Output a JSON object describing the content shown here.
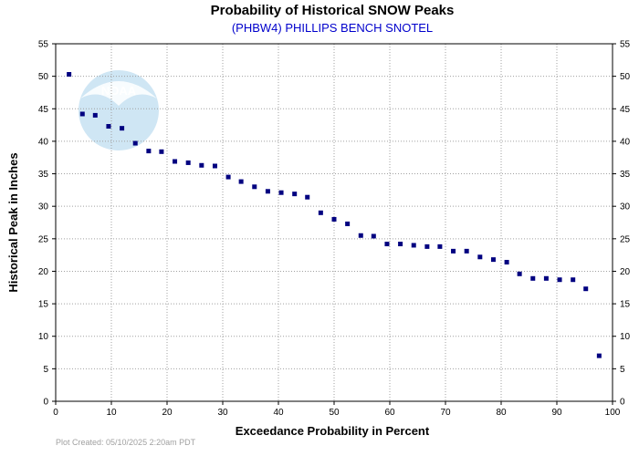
{
  "chart_data": {
    "type": "scatter",
    "title": "Probability of Historical SNOW Peaks",
    "subtitle": "(PHBW4) PHILLIPS BENCH SNOTEL",
    "xlabel": "Exceedance Probability in Percent",
    "ylabel": "Historical Peak in Inches",
    "xlim": [
      0,
      100
    ],
    "ylim": [
      0,
      55
    ],
    "x_ticks": [
      0,
      10,
      20,
      30,
      40,
      50,
      60,
      70,
      80,
      90,
      100
    ],
    "y_ticks": [
      0,
      5,
      10,
      15,
      20,
      25,
      30,
      35,
      40,
      45,
      50,
      55
    ],
    "grid": true,
    "series": [
      {
        "x": [
          2.4,
          4.8,
          7.1,
          9.5,
          11.9,
          14.3,
          16.7,
          19.0,
          21.4,
          23.8,
          26.2,
          28.6,
          31.0,
          33.3,
          35.7,
          38.1,
          40.5,
          42.9,
          45.2,
          47.6,
          50.0,
          52.4,
          54.8,
          57.1,
          59.5,
          61.9,
          64.3,
          66.7,
          69.0,
          71.4,
          73.8,
          76.2,
          78.6,
          81.0,
          83.3,
          85.7,
          88.1,
          90.5,
          92.9,
          95.2,
          97.6
        ],
        "y": [
          50.3,
          44.2,
          44.0,
          42.3,
          42.0,
          39.7,
          38.5,
          38.4,
          36.9,
          36.7,
          36.3,
          36.2,
          34.5,
          33.8,
          33.0,
          32.3,
          32.1,
          31.9,
          31.4,
          29.0,
          28.0,
          27.3,
          25.5,
          25.4,
          24.2,
          24.2,
          24.0,
          23.8,
          23.8,
          23.1,
          23.1,
          22.2,
          21.8,
          21.4,
          19.6,
          18.9,
          18.9,
          18.7,
          18.7,
          17.3,
          7.0
        ],
        "color": "#000080"
      }
    ],
    "logo_text": "NOAA",
    "footer": "Plot Created: 05/10/2025 2:20am PDT",
    "colors": {
      "grid": "#a0a0a0",
      "subtitle": "#0000cc",
      "points": "#000080",
      "footer": "#a0a0a0",
      "logo": "#cfe6f4"
    }
  }
}
